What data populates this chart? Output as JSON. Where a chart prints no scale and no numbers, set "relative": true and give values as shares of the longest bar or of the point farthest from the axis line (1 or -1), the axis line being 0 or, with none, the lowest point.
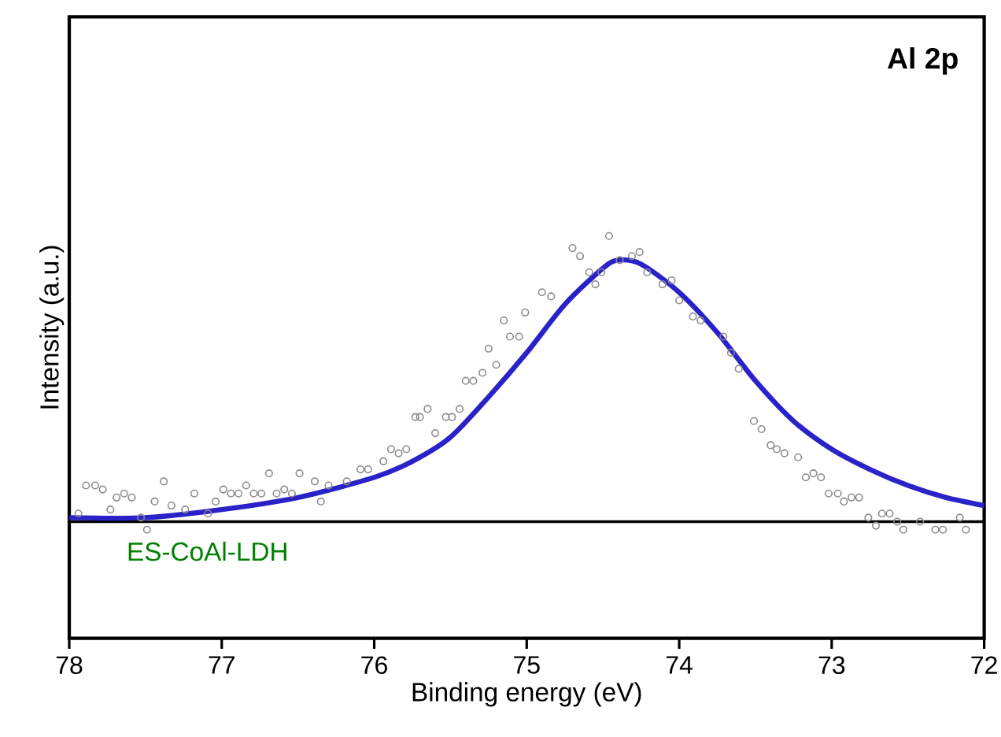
{
  "chart_data": {
    "type": "scatter",
    "xlabel": "Binding energy (eV)",
    "ylabel": "Intensity (a.u.)",
    "relative": true,
    "xlim": [
      78,
      72
    ],
    "xticks": [
      78,
      77,
      76,
      75,
      74,
      73,
      72
    ],
    "annotations": [
      "Al 2p",
      "ES-CoAl-LDH"
    ],
    "series": [
      {
        "marker": "circle",
        "color": "#8c8c8c",
        "x": [
          77.94,
          77.89,
          77.83,
          77.78,
          77.73,
          77.69,
          77.64,
          77.59,
          77.53,
          77.49,
          77.44,
          77.38,
          77.33,
          77.24,
          77.18,
          77.09,
          77.04,
          76.99,
          76.94,
          76.89,
          76.84,
          76.79,
          76.74,
          76.69,
          76.64,
          76.59,
          76.54,
          76.49,
          76.39,
          76.35,
          76.3,
          76.18,
          76.09,
          76.04,
          75.94,
          75.89,
          75.84,
          75.79,
          75.73,
          75.7,
          75.65,
          75.6,
          75.53,
          75.49,
          75.44,
          75.4,
          75.35,
          75.29,
          75.25,
          75.2,
          75.15,
          75.11,
          75.05,
          75.01,
          74.9,
          74.84,
          74.7,
          74.65,
          74.59,
          74.55,
          74.51,
          74.46,
          74.39,
          74.31,
          74.26,
          74.21,
          74.11,
          74.05,
          74.0,
          73.91,
          73.86,
          73.71,
          73.66,
          73.61,
          73.51,
          73.46,
          73.4,
          73.36,
          73.31,
          73.22,
          73.17,
          73.12,
          73.07,
          73.02,
          72.96,
          72.92,
          72.87,
          72.82,
          72.76,
          72.71,
          72.67,
          72.62,
          72.57,
          72.53,
          72.42,
          72.32,
          72.27,
          72.16,
          72.12
        ],
        "values": [
          0.31,
          0.38,
          0.38,
          0.37,
          0.32,
          0.35,
          0.36,
          0.35,
          0.3,
          0.27,
          0.34,
          0.39,
          0.33,
          0.32,
          0.36,
          0.31,
          0.34,
          0.37,
          0.36,
          0.36,
          0.38,
          0.36,
          0.36,
          0.41,
          0.36,
          0.37,
          0.36,
          0.41,
          0.39,
          0.34,
          0.38,
          0.39,
          0.42,
          0.42,
          0.44,
          0.47,
          0.46,
          0.47,
          0.55,
          0.55,
          0.57,
          0.51,
          0.55,
          0.55,
          0.57,
          0.64,
          0.64,
          0.66,
          0.72,
          0.68,
          0.79,
          0.75,
          0.75,
          0.81,
          0.86,
          0.85,
          0.97,
          0.95,
          0.91,
          0.88,
          0.91,
          1.0,
          0.94,
          0.95,
          0.96,
          0.91,
          0.88,
          0.89,
          0.84,
          0.8,
          0.79,
          0.75,
          0.71,
          0.67,
          0.54,
          0.52,
          0.48,
          0.47,
          0.46,
          0.45,
          0.4,
          0.41,
          0.4,
          0.36,
          0.36,
          0.34,
          0.35,
          0.35,
          0.3,
          0.28,
          0.31,
          0.31,
          0.29,
          0.27,
          0.29,
          0.27,
          0.27,
          0.3,
          0.27
        ]
      },
      {
        "type": "line",
        "color": "#000000",
        "x": [
          78,
          72
        ],
        "values": [
          0.29,
          0.29
        ]
      },
      {
        "type": "line",
        "color": "#2a22c8",
        "x": [
          78,
          77.5,
          77,
          76.5,
          76,
          75.75,
          75.5,
          75.25,
          75,
          74.75,
          74.5,
          74.4,
          74.25,
          74,
          73.75,
          73.5,
          73.25,
          73,
          72.75,
          72.5,
          72.25,
          72
        ],
        "values": [
          0.3,
          0.3,
          0.32,
          0.35,
          0.4,
          0.44,
          0.5,
          0.6,
          0.71,
          0.83,
          0.92,
          0.94,
          0.93,
          0.86,
          0.76,
          0.64,
          0.54,
          0.47,
          0.42,
          0.38,
          0.35,
          0.33
        ]
      }
    ]
  }
}
